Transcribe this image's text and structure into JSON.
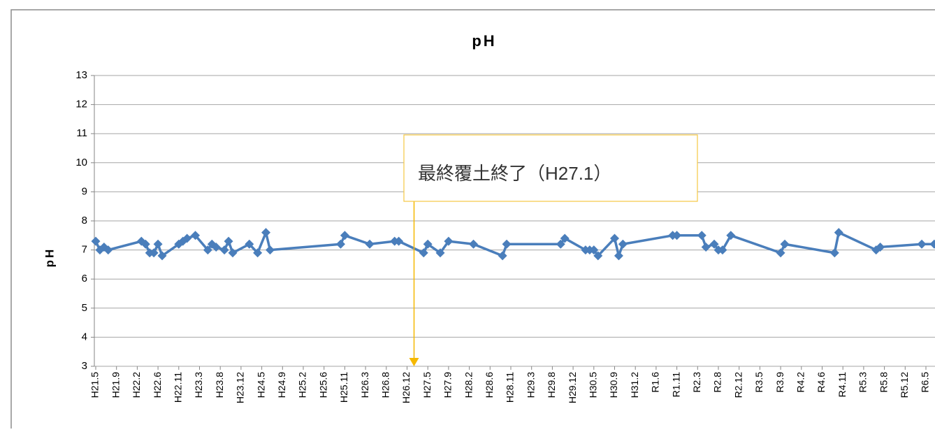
{
  "chart_data": {
    "type": "line",
    "title": "pH",
    "y_label": "pH",
    "annotation": "最終覆土終了（H27.1）",
    "annotation_category": "H26.12",
    "color": "#4a7ebb",
    "grid": true,
    "connect_gaps": true,
    "ylim": [
      3,
      13
    ],
    "yticks": [
      3,
      4,
      5,
      6,
      7,
      8,
      9,
      10,
      11,
      12,
      13
    ],
    "categories": [
      "H21.5",
      null,
      null,
      null,
      null,
      "H21.9",
      null,
      null,
      null,
      null,
      "H22.2",
      null,
      null,
      null,
      null,
      "H22.6",
      null,
      null,
      null,
      null,
      "H22.11",
      null,
      null,
      null,
      null,
      "H23.3",
      null,
      null,
      null,
      null,
      "H23.8",
      null,
      null,
      null,
      null,
      "H23.12",
      null,
      null,
      null,
      null,
      "H24.5",
      null,
      null,
      null,
      null,
      "H24.9",
      null,
      null,
      null,
      null,
      "H25.2",
      null,
      null,
      null,
      null,
      "H25.6",
      null,
      null,
      null,
      null,
      "H25.11",
      null,
      null,
      null,
      null,
      "H26.3",
      null,
      null,
      null,
      null,
      "H26.8",
      null,
      null,
      null,
      null,
      "H26.12",
      null,
      null,
      null,
      null,
      "H27.5",
      null,
      null,
      null,
      null,
      "H27.9",
      null,
      null,
      null,
      null,
      "H28.2",
      null,
      null,
      null,
      null,
      "H28.6",
      null,
      null,
      null,
      null,
      "H28.11",
      null,
      null,
      null,
      null,
      "H29.3",
      null,
      null,
      null,
      null,
      "H29.8",
      null,
      null,
      null,
      null,
      "H29.12",
      null,
      null,
      null,
      null,
      "H30.5",
      null,
      null,
      null,
      null,
      "H30.9",
      null,
      null,
      null,
      null,
      "H31.2",
      null,
      null,
      null,
      null,
      "R1.6",
      null,
      null,
      null,
      null,
      "R1.11",
      null,
      null,
      null,
      null,
      "R2.3",
      null,
      null,
      null,
      null,
      "R2.8",
      null,
      null,
      null,
      null,
      "R2.12",
      null,
      null,
      null,
      null,
      "R3.5",
      null,
      null,
      null,
      null,
      "R3.9",
      null,
      null,
      null,
      null,
      "R4.2",
      null,
      null,
      null,
      null,
      "R4.6",
      null,
      null,
      null,
      null,
      "R4.11",
      null,
      null,
      null,
      null,
      "R5.3",
      null,
      null,
      null,
      null,
      "R5.8",
      null,
      null,
      null,
      null,
      "R5.12",
      null,
      null,
      null,
      null,
      "R6.5",
      null,
      null
    ],
    "values": [
      7.3,
      7.0,
      7.1,
      7.0,
      null,
      null,
      null,
      null,
      null,
      null,
      null,
      7.3,
      7.2,
      6.9,
      6.9,
      7.2,
      6.8,
      null,
      null,
      null,
      7.2,
      7.3,
      7.4,
      null,
      7.5,
      null,
      null,
      7.0,
      7.2,
      7.1,
      null,
      7.0,
      7.3,
      6.9,
      null,
      null,
      null,
      7.2,
      null,
      6.9,
      null,
      7.6,
      7.0,
      null,
      null,
      null,
      null,
      null,
      null,
      null,
      null,
      null,
      null,
      null,
      null,
      null,
      null,
      null,
      null,
      7.2,
      7.5,
      null,
      null,
      null,
      null,
      null,
      7.2,
      null,
      null,
      null,
      null,
      null,
      7.3,
      7.3,
      null,
      null,
      null,
      null,
      null,
      6.9,
      7.2,
      null,
      null,
      6.9,
      null,
      7.3,
      null,
      null,
      null,
      null,
      null,
      7.2,
      null,
      null,
      null,
      null,
      null,
      null,
      6.8,
      7.2,
      null,
      null,
      null,
      null,
      null,
      null,
      null,
      null,
      null,
      null,
      null,
      null,
      7.2,
      7.4,
      null,
      null,
      null,
      null,
      7.0,
      7.0,
      7.0,
      6.8,
      null,
      null,
      null,
      7.4,
      6.8,
      7.2,
      null,
      null,
      null,
      null,
      null,
      null,
      null,
      null,
      null,
      null,
      null,
      7.5,
      7.5,
      null,
      null,
      null,
      null,
      null,
      7.5,
      7.1,
      null,
      7.2,
      7.0,
      7.0,
      null,
      7.5,
      null,
      null,
      null,
      null,
      null,
      null,
      null,
      null,
      null,
      null,
      null,
      6.9,
      7.2,
      null,
      null,
      null,
      null,
      null,
      null,
      null,
      null,
      null,
      null,
      null,
      6.9,
      7.6,
      null,
      null,
      null,
      null,
      null,
      null,
      null,
      null,
      7.0,
      7.1,
      null,
      null,
      null,
      null,
      null,
      null,
      null,
      null,
      null,
      7.2,
      null,
      null,
      7.2
    ]
  }
}
